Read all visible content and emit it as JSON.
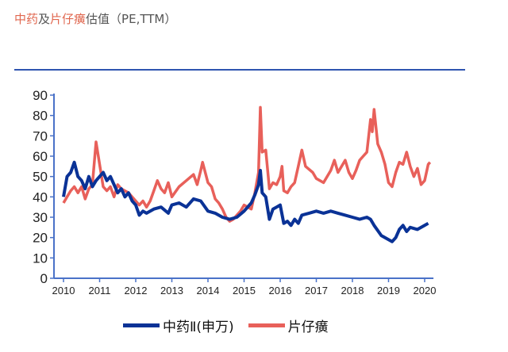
{
  "title": {
    "part1": "中药",
    "part2": "及",
    "part3": "片仔癀",
    "part4": "估值（PE,TTM）"
  },
  "chart_data": {
    "type": "line",
    "title": "中药及片仔癀估值（PE,TTM）",
    "xlabel": "",
    "ylabel": "",
    "xlim": [
      2010,
      2020.2
    ],
    "ylim": [
      0,
      90
    ],
    "yticks": [
      0,
      10,
      20,
      30,
      40,
      50,
      60,
      70,
      80,
      90
    ],
    "xticks": [
      2010,
      2011,
      2012,
      2013,
      2014,
      2015,
      2016,
      2017,
      2018,
      2019,
      2020
    ],
    "grid": false,
    "legend": "bottom",
    "series": [
      {
        "name": "中药Ⅱ(申万)",
        "color": "#0a3296",
        "x": [
          2010.0,
          2010.1,
          2010.2,
          2010.3,
          2010.4,
          2010.5,
          2010.6,
          2010.7,
          2010.8,
          2010.9,
          2011.0,
          2011.1,
          2011.2,
          2011.3,
          2011.4,
          2011.5,
          2011.6,
          2011.7,
          2011.8,
          2011.9,
          2012.0,
          2012.1,
          2012.2,
          2012.3,
          2012.5,
          2012.7,
          2012.9,
          2013.0,
          2013.2,
          2013.4,
          2013.6,
          2013.8,
          2014.0,
          2014.2,
          2014.4,
          2014.6,
          2014.8,
          2015.0,
          2015.2,
          2015.3,
          2015.4,
          2015.45,
          2015.5,
          2015.6,
          2015.7,
          2015.8,
          2015.9,
          2016.0,
          2016.1,
          2016.2,
          2016.3,
          2016.4,
          2016.5,
          2016.6,
          2016.8,
          2017.0,
          2017.2,
          2017.4,
          2017.6,
          2017.8,
          2018.0,
          2018.2,
          2018.4,
          2018.5,
          2018.6,
          2018.8,
          2019.0,
          2019.1,
          2019.2,
          2019.3,
          2019.4,
          2019.5,
          2019.6,
          2019.8,
          2020.0,
          2020.1
        ],
        "y": [
          40,
          50,
          52,
          57,
          50,
          48,
          44,
          50,
          45,
          48,
          50,
          52,
          48,
          50,
          46,
          42,
          44,
          40,
          42,
          38,
          36,
          31,
          33,
          32,
          34,
          35,
          32,
          36,
          37,
          35,
          39,
          38,
          33,
          32,
          30,
          29,
          30,
          33,
          37,
          41,
          46,
          53,
          42,
          40,
          29,
          34,
          35,
          36,
          27,
          28,
          26,
          29,
          27,
          31,
          32,
          33,
          32,
          33,
          32,
          31,
          30,
          29,
          30,
          29,
          26,
          21,
          19,
          18,
          20,
          24,
          26,
          23,
          25,
          24,
          26,
          27
        ]
      },
      {
        "name": "片仔癀",
        "color": "#e8605a",
        "x": [
          2010.0,
          2010.1,
          2010.2,
          2010.3,
          2010.4,
          2010.5,
          2010.6,
          2010.7,
          2010.8,
          2010.9,
          2011.0,
          2011.1,
          2011.2,
          2011.3,
          2011.4,
          2011.5,
          2011.6,
          2011.8,
          2012.0,
          2012.1,
          2012.2,
          2012.3,
          2012.4,
          2012.5,
          2012.6,
          2012.7,
          2012.8,
          2012.9,
          2013.0,
          2013.2,
          2013.4,
          2013.6,
          2013.7,
          2013.8,
          2013.85,
          2014.0,
          2014.1,
          2014.2,
          2014.3,
          2014.4,
          2014.5,
          2014.6,
          2014.7,
          2014.8,
          2014.9,
          2015.0,
          2015.1,
          2015.2,
          2015.3,
          2015.4,
          2015.45,
          2015.5,
          2015.6,
          2015.7,
          2015.8,
          2015.9,
          2016.0,
          2016.05,
          2016.1,
          2016.2,
          2016.3,
          2016.4,
          2016.5,
          2016.6,
          2016.7,
          2016.9,
          2017.0,
          2017.2,
          2017.4,
          2017.5,
          2017.6,
          2017.8,
          2017.9,
          2018.0,
          2018.1,
          2018.2,
          2018.3,
          2018.4,
          2018.5,
          2018.55,
          2018.6,
          2018.7,
          2018.8,
          2018.9,
          2019.0,
          2019.1,
          2019.2,
          2019.3,
          2019.4,
          2019.5,
          2019.6,
          2019.7,
          2019.8,
          2019.9,
          2020.0,
          2020.1,
          2020.15
        ],
        "y": [
          37,
          40,
          43,
          45,
          42,
          45,
          39,
          44,
          46,
          67,
          56,
          45,
          43,
          45,
          40,
          46,
          44,
          42,
          38,
          36,
          38,
          35,
          38,
          43,
          48,
          44,
          42,
          47,
          40,
          45,
          48,
          51,
          46,
          53,
          57,
          47,
          45,
          39,
          37,
          34,
          30,
          28,
          29,
          31,
          33,
          36,
          35,
          34,
          42,
          52,
          84,
          62,
          63,
          44,
          47,
          46,
          50,
          55,
          43,
          42,
          45,
          47,
          55,
          63,
          55,
          52,
          49,
          47,
          53,
          58,
          52,
          58,
          52,
          49,
          53,
          58,
          60,
          62,
          78,
          72,
          83,
          66,
          62,
          56,
          47,
          45,
          52,
          57,
          56,
          62,
          55,
          50,
          54,
          46,
          48,
          56,
          57
        ]
      }
    ]
  }
}
